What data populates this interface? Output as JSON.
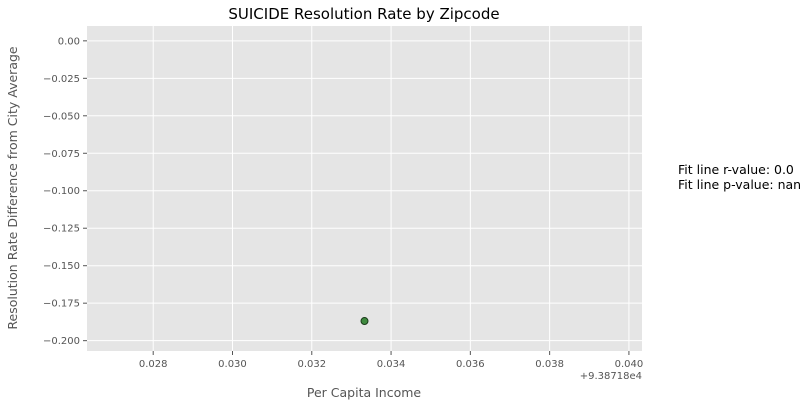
{
  "chart_data": {
    "type": "scatter",
    "title": "SUICIDE Resolution Rate by Zipcode",
    "xlabel": "Per Capita Income",
    "ylabel": "Resolution Rate Difference from City Average",
    "x_offset_label": "+9.38718e4",
    "x_tick_labels": [
      "0.028",
      "0.030",
      "0.032",
      "0.034",
      "0.036",
      "0.038",
      "0.040"
    ],
    "y_tick_labels": [
      "0.00",
      "−0.025",
      "−0.050",
      "−0.075",
      "−0.100",
      "−0.125",
      "−0.150",
      "−0.175",
      "−0.200"
    ],
    "x_ticks": [
      0.028,
      0.03,
      0.032,
      0.034,
      0.036,
      0.038,
      0.04
    ],
    "y_ticks": [
      0.0,
      -0.025,
      -0.05,
      -0.075,
      -0.1,
      -0.125,
      -0.15,
      -0.175,
      -0.2
    ],
    "xlim": [
      0.02633,
      0.04033
    ],
    "ylim": [
      -0.2069,
      0.0099
    ],
    "grid": true,
    "points": [
      {
        "x": 0.03333,
        "y": -0.1869
      }
    ],
    "colors": {
      "plot_bg": "#e5e5e5",
      "grid": "#ffffff",
      "point_fill": "#3f8a3f",
      "point_edge": "#1a3a1a",
      "text": "#555555",
      "title": "#000000"
    },
    "annotations": [
      "Fit line r-value: 0.0",
      "Fit line p-value: nan"
    ]
  }
}
